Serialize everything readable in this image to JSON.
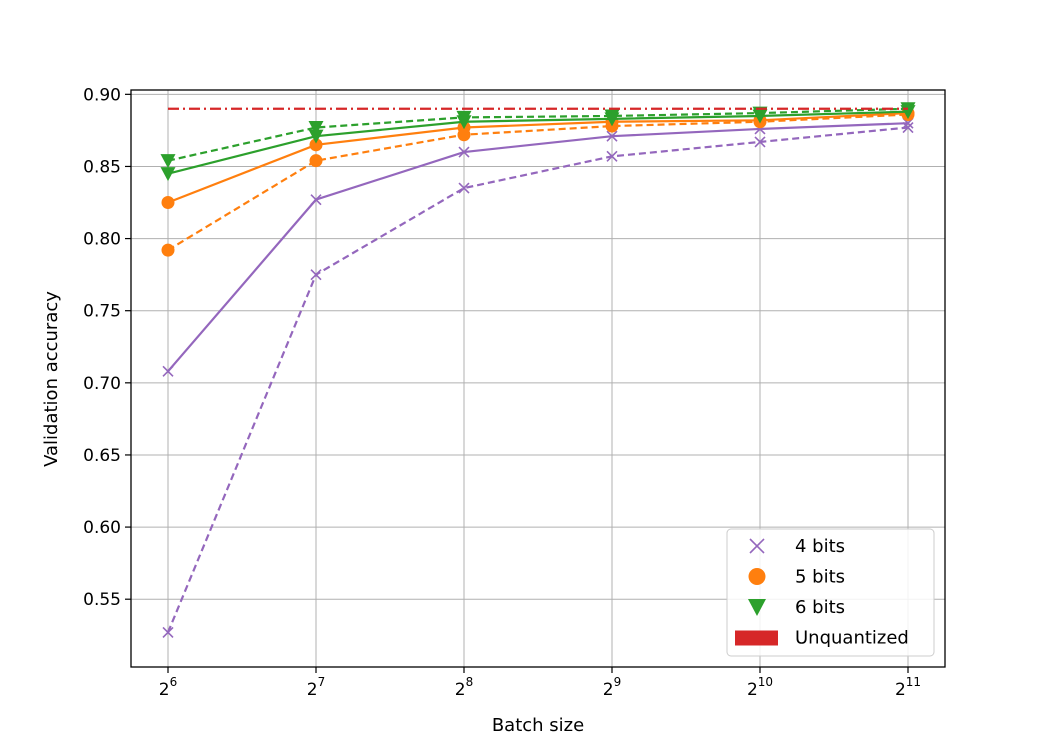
{
  "chart_data": {
    "type": "line",
    "title": "",
    "xlabel": "Batch size",
    "ylabel": "Validation accuracy",
    "x_scale": "log2",
    "x": [
      64,
      128,
      256,
      512,
      1024,
      2048
    ],
    "x_tick_labels": [
      {
        "base": "2",
        "exp": "6"
      },
      {
        "base": "2",
        "exp": "7"
      },
      {
        "base": "2",
        "exp": "8"
      },
      {
        "base": "2",
        "exp": "9"
      },
      {
        "base": "2",
        "exp": "10"
      },
      {
        "base": "2",
        "exp": "11"
      }
    ],
    "ylim": [
      0.503,
      0.903
    ],
    "y_ticks": [
      "0.55",
      "0.60",
      "0.65",
      "0.70",
      "0.75",
      "0.80",
      "0.85",
      "0.90"
    ],
    "grid": true,
    "legend_position": "lower-right",
    "series": [
      {
        "name": "4 bits",
        "line": "solid",
        "marker": "x",
        "color": "#9467bd",
        "values": [
          0.708,
          0.827,
          0.86,
          0.871,
          0.876,
          0.88
        ]
      },
      {
        "line": "dashed",
        "marker": "x",
        "color": "#9467bd",
        "values": [
          0.527,
          0.775,
          0.835,
          0.857,
          0.867,
          0.877
        ]
      },
      {
        "name": "5 bits",
        "line": "solid",
        "marker": "circle",
        "color": "#ff7f0e",
        "values": [
          0.825,
          0.865,
          0.877,
          0.881,
          0.882,
          0.887
        ]
      },
      {
        "line": "dashed",
        "marker": "circle",
        "color": "#ff7f0e",
        "values": [
          0.792,
          0.854,
          0.872,
          0.878,
          0.881,
          0.886
        ]
      },
      {
        "name": "6 bits",
        "line": "solid",
        "marker": "triangle-down",
        "color": "#2ca02c",
        "values": [
          0.845,
          0.871,
          0.881,
          0.883,
          0.885,
          0.888
        ]
      },
      {
        "line": "dashed",
        "marker": "triangle-down",
        "color": "#2ca02c",
        "values": [
          0.854,
          0.877,
          0.884,
          0.885,
          0.887,
          0.89
        ]
      },
      {
        "name": "Unquantized",
        "line": "dashdot",
        "marker": "none",
        "color": "#d62728",
        "values": [
          0.89,
          0.89,
          0.89,
          0.89,
          0.89,
          0.89
        ]
      }
    ],
    "legend": [
      {
        "label": "4 bits",
        "marker": "x",
        "color": "#9467bd"
      },
      {
        "label": "5 bits",
        "marker": "circle",
        "color": "#ff7f0e"
      },
      {
        "label": "6 bits",
        "marker": "triangle-down",
        "color": "#2ca02c"
      },
      {
        "label": "Unquantized",
        "marker": "patch",
        "color": "#d62728"
      }
    ]
  }
}
